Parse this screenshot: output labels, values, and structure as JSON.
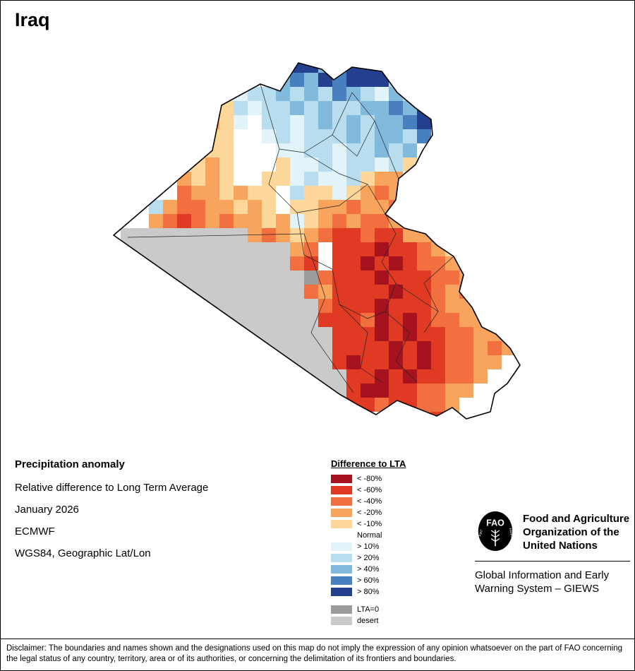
{
  "page": {
    "title": "Iraq"
  },
  "map": {
    "name": "iraq-precipitation-anomaly-grid",
    "grid": {
      "cell_size": 20,
      "rows": [
        ".............JJHIJJJ..........",
        "............HIHJIJJJG.........",
        ".........FGGHGHGIHGFHG........",
        "........EGFGGHGHGGHHIHJ.......",
        ".......DEFNGGFGHGHGHHIJ.......",
        ".......EENNFGFGGGHGHHGI.......",
        "......DEENNNFFGGFGGHGH........",
        "......EDENNNEFFGFGGFGE........",
        ".....DEDENNEEFGFFGEDD.........",
        ".....CDDEDEENGEEFEDCD.........",
        "...GDCCDDEDENEEDDCDDC.........",
        "...DCBCDCDDEDFEDCDCCD.........",
        ".SSSSSSSSSDCDEDCBBCBBDDC......",
        "SSSSSSSSSSSSSDCNBBBABBCDE.....",
        "SSSSSSSSSSSSSCBNBBABABCCDC....",
        "SSSSSSSSSSSSSSXCBBBABBBCCD....",
        "SSSSSSSSSSSSSSCDBBBBABBCDCD...",
        "SSSSSSSSSSSSSSSCBBBABBBCDDC...",
        "SSSSSSSSSSSSSSSBBBCABABCCDDD..",
        "SSSSSSSSSSSSSSSSBBBABABBCCDDD.",
        "SSSSSSSSSSSSSSSSBBBBABABCCDCD.",
        "SSSSSSSSSSSSSSSSBABBABABCCDD..",
        "SSSSSSSSSSSSSSSSSBBABABBCCD...",
        "SSSSSSSSSSSSSSSSSBAABBCCDD....",
        "................SBBCBBCCD.....",
        "....................BBCB......"
      ]
    },
    "palette": {
      "A": "#a6131f",
      "B": "#e03a24",
      "C": "#f2703f",
      "D": "#f9a45c",
      "E": "#fdd79a",
      "N": "#ffffff",
      "F": "#e3f3fa",
      "G": "#b8ddee",
      "H": "#82badd",
      "I": "#477fbf",
      "J": "#24418f",
      "X": "#9c9c9c",
      "S": "#cacaca"
    }
  },
  "legend": {
    "title": "Difference to LTA",
    "items": [
      {
        "label": "< -80%",
        "color": "#a6131f"
      },
      {
        "label": "< -60%",
        "color": "#e03a24"
      },
      {
        "label": "< -40%",
        "color": "#f2703f"
      },
      {
        "label": "< -20%",
        "color": "#f9a45c"
      },
      {
        "label": "< -10%",
        "color": "#fdd79a"
      },
      {
        "label": "Normal",
        "color": "#ffffff"
      },
      {
        "label": "> 10%",
        "color": "#e3f3fa"
      },
      {
        "label": "> 20%",
        "color": "#b8ddee"
      },
      {
        "label": "> 40%",
        "color": "#82badd"
      },
      {
        "label": "> 60%",
        "color": "#477fbf"
      },
      {
        "label": "> 80%",
        "color": "#24418f"
      }
    ],
    "flat_items": [
      {
        "label": "LTA=0",
        "color": "#9c9c9c"
      },
      {
        "label": "desert",
        "color": "#cacaca"
      }
    ]
  },
  "info": {
    "heading": "Precipitation anomaly",
    "subtitle": "Relative difference to Long Term Average",
    "date": "January 2026",
    "source": "ECMWF",
    "projection": "WGS84, Geographic Lat/Lon"
  },
  "footer": {
    "fao_lines": [
      "Food and Agriculture",
      "Organization of the",
      "United Nations"
    ],
    "giews_lines": [
      "Global Information and Early",
      "Warning System – GIEWS"
    ],
    "disclaimer": "Disclaimer: The boundaries and names shown and the designations used on this map do not imply the expression of any opinion whatsoever on the part of FAO concerning the legal status of any country, territory, area or of its authorities, or concerning the delimitation of its frontiers and boundaries."
  }
}
